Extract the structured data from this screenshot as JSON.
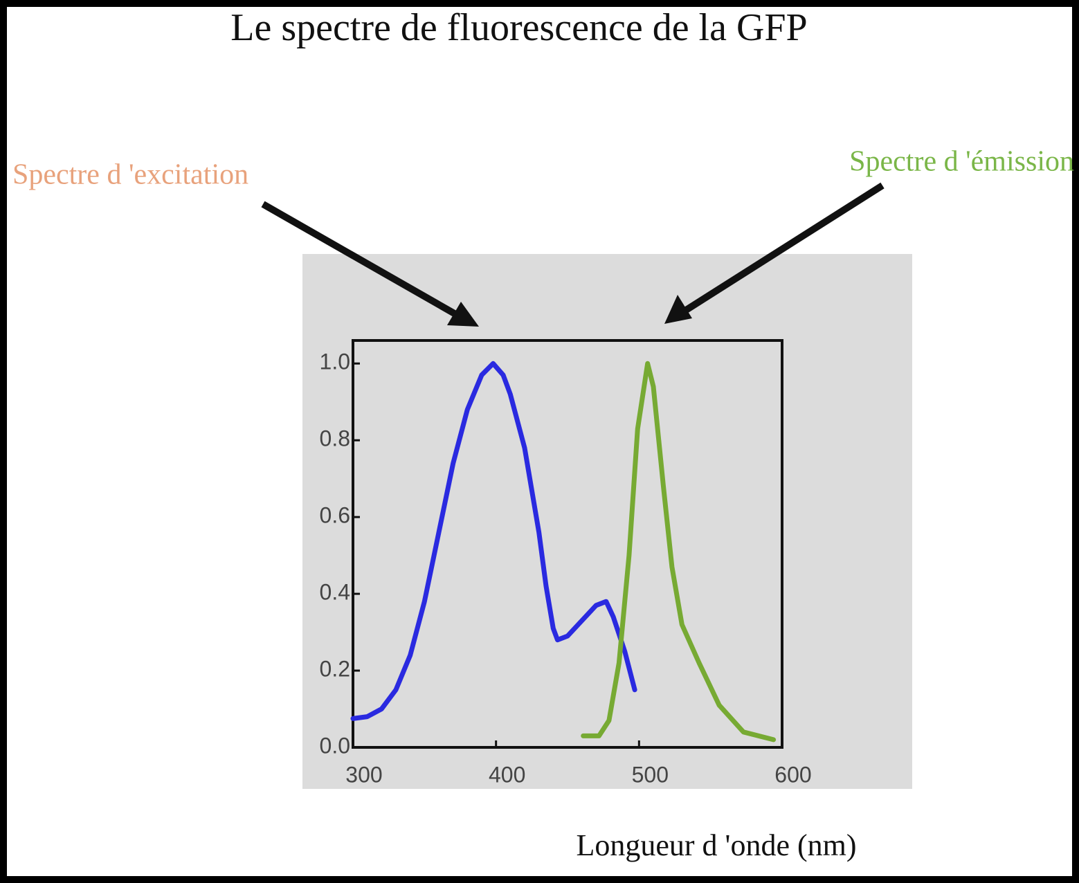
{
  "chart_data": {
    "type": "line",
    "title": "Le spectre de fluorescence de la GFP",
    "xlabel": "Longueur d 'onde (nm)",
    "xlim": [
      300,
      600
    ],
    "ylim": [
      0,
      1.06
    ],
    "xticks": [
      300,
      400,
      500,
      600
    ],
    "yticks": [
      {
        "value": 0,
        "label": "0.0"
      },
      0.2,
      0.4,
      0.6,
      0.8,
      {
        "value": 1,
        "label": "1.0"
      }
    ],
    "series": [
      {
        "name": "Spectre d 'excitation",
        "color": "#2a2ae0",
        "label_color": "#e8a27c",
        "x": [
          300,
          310,
          320,
          330,
          340,
          350,
          360,
          370,
          380,
          390,
          398,
          405,
          410,
          420,
          430,
          435,
          440,
          443,
          450,
          460,
          470,
          477,
          482,
          490,
          497
        ],
        "values": [
          0.075,
          0.08,
          0.1,
          0.15,
          0.24,
          0.38,
          0.56,
          0.74,
          0.88,
          0.97,
          1.0,
          0.97,
          0.92,
          0.78,
          0.56,
          0.42,
          0.31,
          0.28,
          0.29,
          0.33,
          0.37,
          0.38,
          0.34,
          0.25,
          0.15
        ]
      },
      {
        "name": "Spectre d 'émission",
        "color": "#77aa33",
        "label_color": "#7ab648",
        "x": [
          461,
          472,
          479,
          486,
          493,
          499,
          506,
          510,
          517,
          523,
          530,
          542,
          556,
          573,
          594
        ],
        "values": [
          0.03,
          0.03,
          0.07,
          0.22,
          0.5,
          0.83,
          1.0,
          0.94,
          0.68,
          0.47,
          0.32,
          0.22,
          0.11,
          0.04,
          0.02
        ]
      }
    ]
  }
}
